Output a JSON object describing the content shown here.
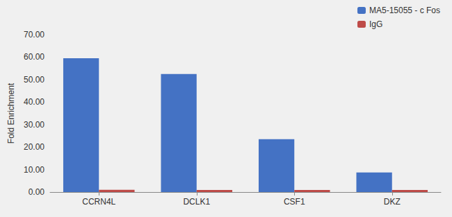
{
  "chart_data": {
    "type": "bar",
    "categories": [
      "CCRN4L",
      "DCLK1",
      "CSF1",
      "DKZ"
    ],
    "series": [
      {
        "name": "MA5-15055 - c Fos",
        "color": "#4472C4",
        "values": [
          59.5,
          52.5,
          23.5,
          8.7
        ]
      },
      {
        "name": "IgG",
        "color": "#BE4B48",
        "values": [
          1.0,
          0.9,
          0.9,
          0.9
        ]
      }
    ],
    "ylabel": "Fold Enrichment",
    "ylim": [
      0,
      70
    ],
    "yticks": [
      {
        "value": 0,
        "label": "0.00"
      },
      {
        "value": 10,
        "label": "10.00"
      },
      {
        "value": 20,
        "label": "20.00"
      },
      {
        "value": 30,
        "label": "30.00"
      },
      {
        "value": 40,
        "label": "40.00"
      },
      {
        "value": 50,
        "label": "50.00"
      },
      {
        "value": 60,
        "label": "60.00"
      },
      {
        "value": 70,
        "label": "70.00"
      }
    ],
    "grid": false,
    "legend": "upper right"
  }
}
